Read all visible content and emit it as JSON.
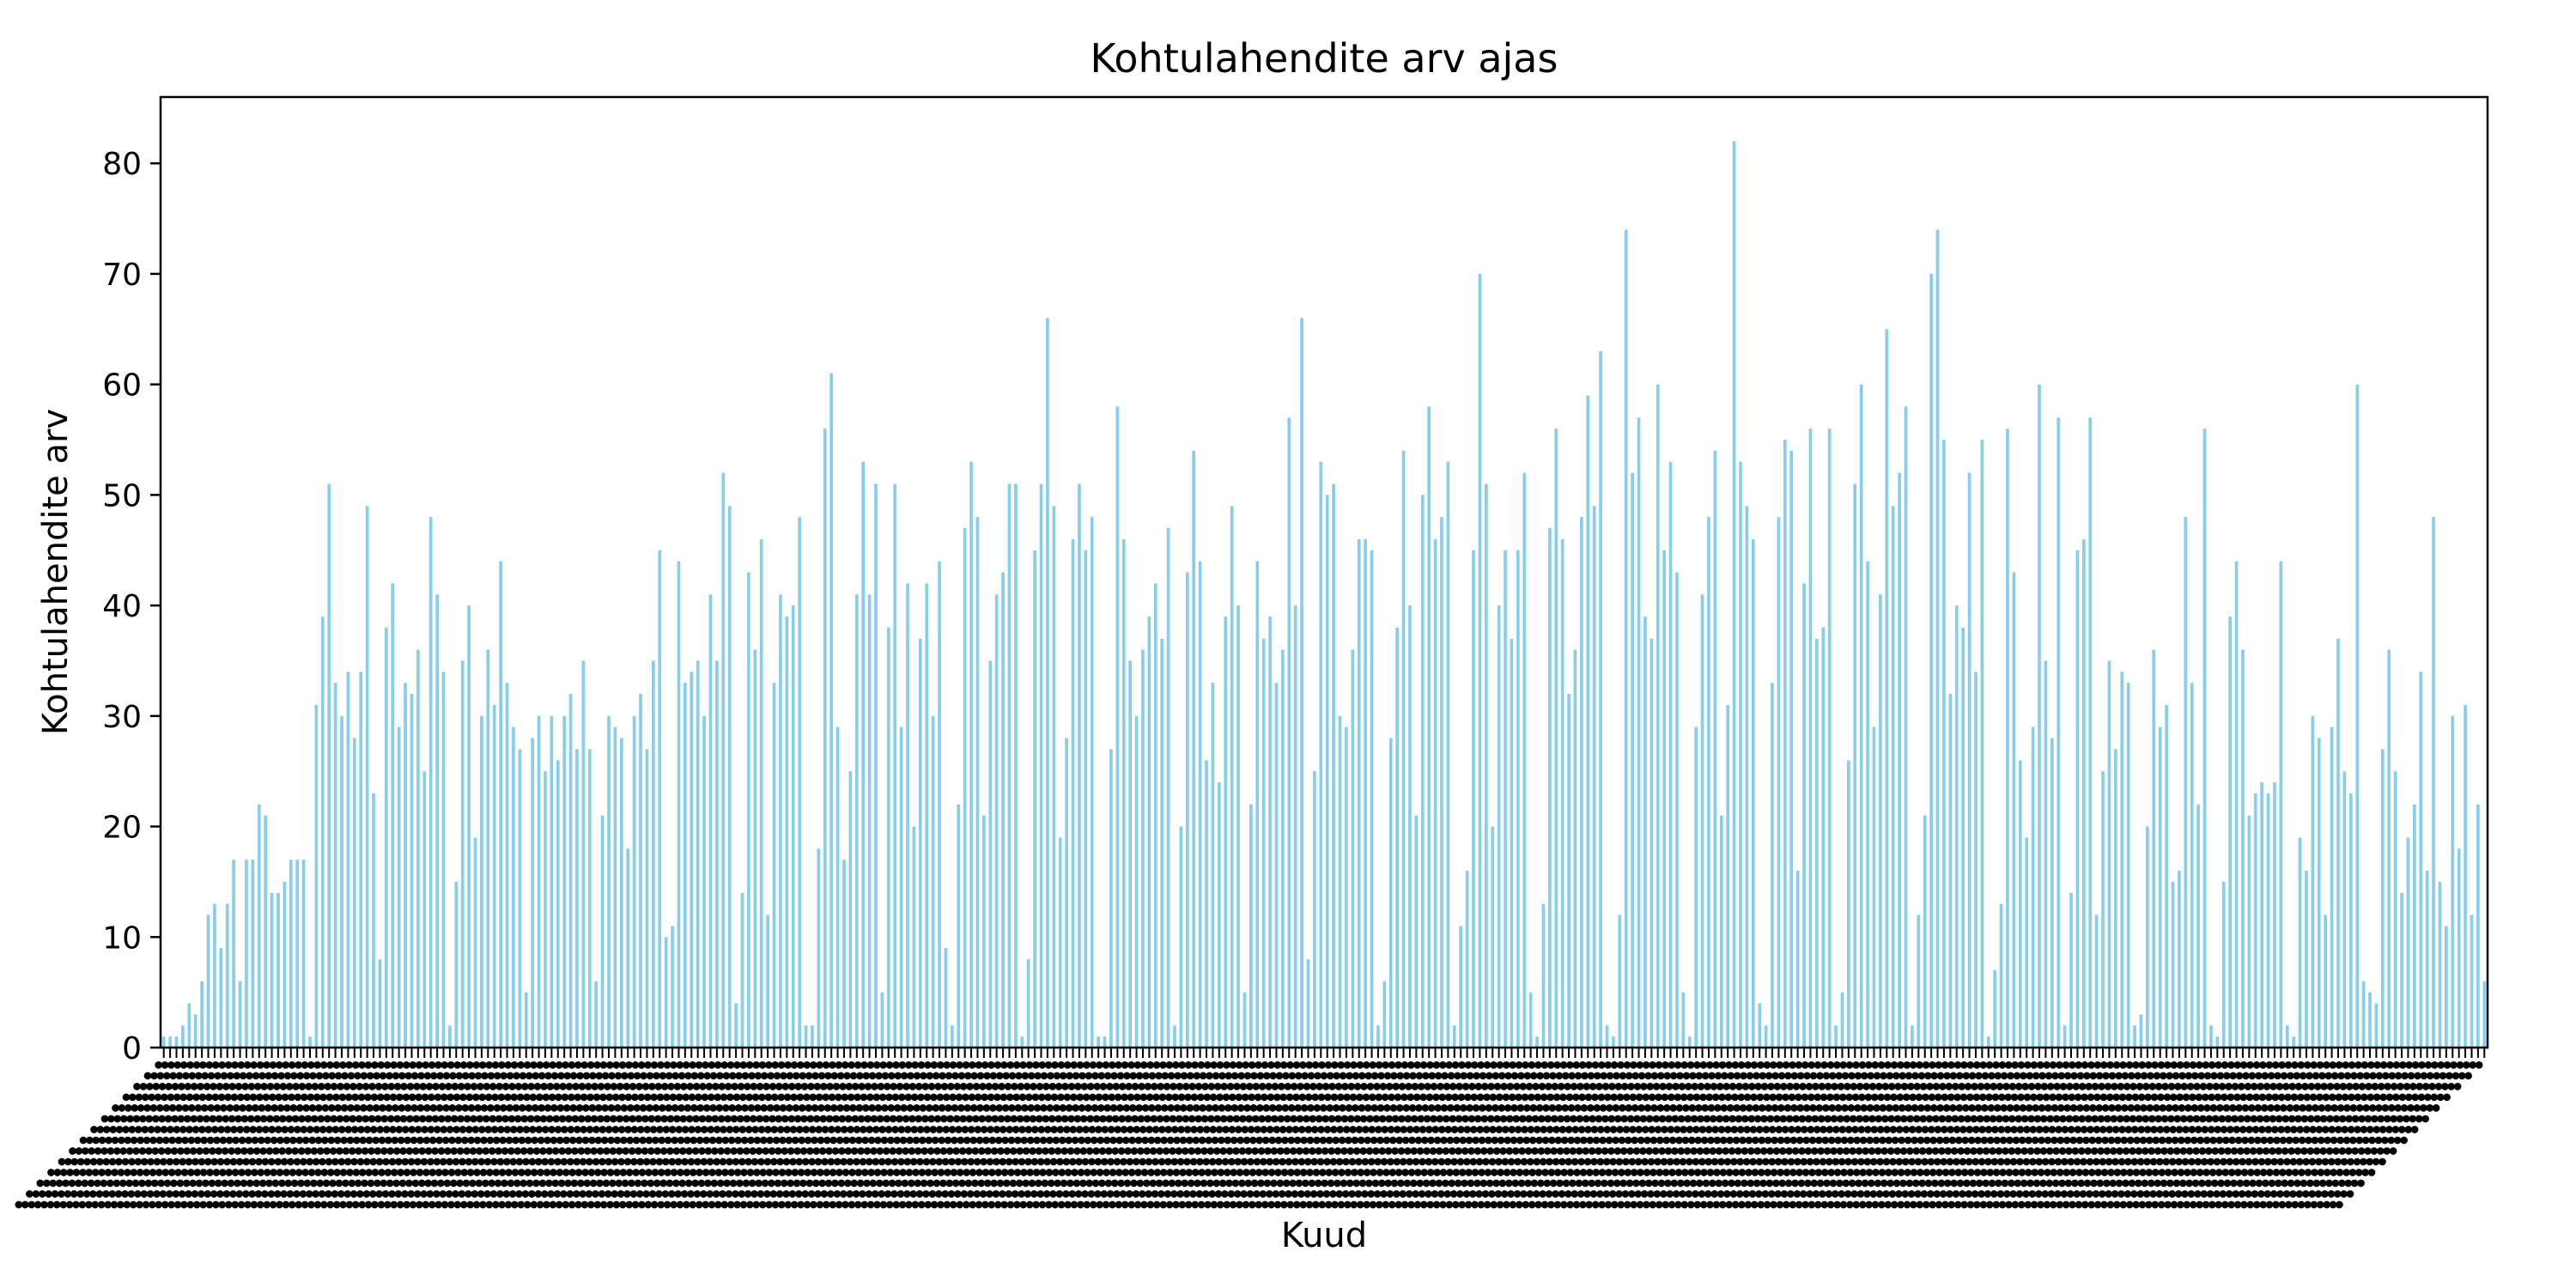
{
  "chart_data": {
    "type": "bar",
    "title": "Kohtulahendite arv ajas",
    "xlabel": "Kuud",
    "ylabel": "Kohtulahendite arv",
    "ylim": [
      0,
      86
    ],
    "yticks": [
      0,
      10,
      20,
      30,
      40,
      50,
      60,
      70,
      80
    ],
    "grid": false,
    "legend": "none",
    "bar_color": "#87CEEB",
    "x_tick_labels_legible": false,
    "values": [
      1,
      1,
      1,
      2,
      4,
      3,
      6,
      12,
      13,
      9,
      13,
      17,
      6,
      17,
      17,
      22,
      21,
      14,
      14,
      15,
      17,
      17,
      17,
      1,
      31,
      39,
      51,
      33,
      30,
      34,
      28,
      34,
      49,
      23,
      8,
      38,
      42,
      29,
      33,
      32,
      36,
      25,
      48,
      41,
      34,
      2,
      15,
      35,
      40,
      19,
      30,
      36,
      31,
      44,
      33,
      29,
      27,
      5,
      28,
      30,
      25,
      30,
      26,
      30,
      32,
      27,
      35,
      27,
      6,
      21,
      30,
      29,
      28,
      18,
      30,
      32,
      27,
      35,
      45,
      10,
      11,
      44,
      33,
      34,
      35,
      30,
      41,
      35,
      52,
      49,
      4,
      14,
      43,
      36,
      46,
      12,
      33,
      41,
      39,
      40,
      48,
      2,
      2,
      18,
      56,
      61,
      29,
      17,
      25,
      41,
      53,
      41,
      51,
      5,
      38,
      51,
      29,
      42,
      20,
      37,
      42,
      30,
      44,
      9,
      2,
      22,
      47,
      53,
      48,
      21,
      35,
      41,
      43,
      51,
      51,
      1,
      8,
      45,
      51,
      66,
      49,
      19,
      28,
      46,
      51,
      45,
      48,
      1,
      1,
      27,
      58,
      46,
      35,
      30,
      36,
      39,
      42,
      37,
      47,
      2,
      20,
      43,
      54,
      44,
      26,
      33,
      24,
      39,
      49,
      40,
      5,
      22,
      44,
      37,
      39,
      33,
      36,
      57,
      40,
      66,
      8,
      25,
      53,
      50,
      51,
      30,
      29,
      36,
      46,
      46,
      45,
      2,
      6,
      28,
      38,
      54,
      40,
      21,
      50,
      58,
      46,
      48,
      53,
      2,
      11,
      16,
      45,
      70,
      51,
      20,
      40,
      45,
      37,
      45,
      52,
      5,
      1,
      13,
      47,
      56,
      46,
      32,
      36,
      48,
      59,
      49,
      63,
      2,
      1,
      12,
      74,
      52,
      57,
      39,
      37,
      60,
      45,
      53,
      43,
      5,
      1,
      29,
      41,
      48,
      54,
      21,
      31,
      82,
      53,
      49,
      46,
      4,
      2,
      33,
      48,
      55,
      54,
      16,
      42,
      56,
      37,
      38,
      56,
      2,
      5,
      26,
      51,
      60,
      44,
      29,
      41,
      65,
      49,
      52,
      58,
      2,
      12,
      21,
      70,
      74,
      55,
      32,
      40,
      38,
      52,
      34,
      55,
      1,
      7,
      13,
      56,
      43,
      26,
      19,
      29,
      60,
      35,
      28,
      57,
      2,
      14,
      45,
      46,
      57,
      12,
      25,
      35,
      27,
      34,
      33,
      2,
      3,
      20,
      36,
      29,
      31,
      15,
      16,
      48,
      33,
      22,
      56,
      2,
      1,
      15,
      39,
      44,
      36,
      21,
      23,
      24,
      23,
      24,
      44,
      2,
      1,
      19,
      16,
      30,
      28,
      12,
      29,
      37,
      25,
      23,
      60,
      6,
      5,
      4,
      27,
      36,
      25,
      14,
      19,
      22,
      34,
      16,
      48,
      15,
      11,
      30,
      18,
      31,
      12,
      22,
      6
    ]
  }
}
